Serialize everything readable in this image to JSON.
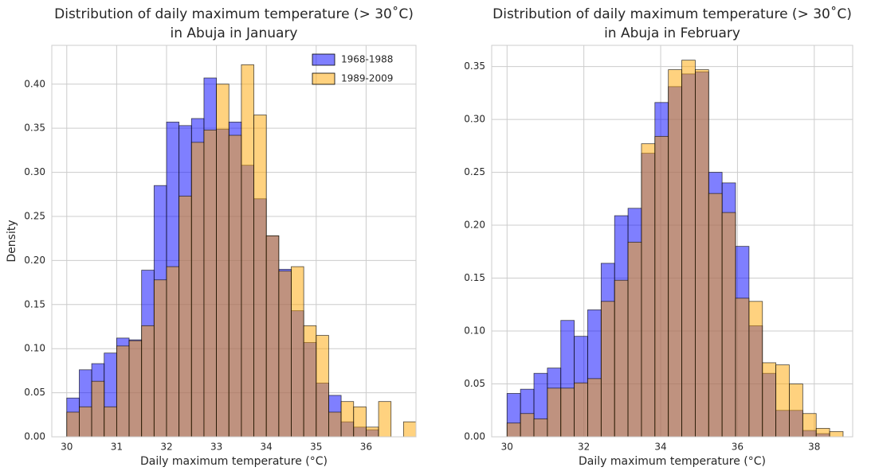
{
  "chart_data": [
    {
      "type": "histogram",
      "title": [
        "Distribution of daily maximum temperature (> 30˚C)",
        "in Abuja in January"
      ],
      "xlabel": "Daily maximum temperature (°C)",
      "ylabel": "Density",
      "bins": [
        30,
        30.25,
        30.5,
        30.75,
        31,
        31.25,
        31.5,
        31.75,
        32,
        32.25,
        32.5,
        32.75,
        33,
        33.25,
        33.5,
        33.75,
        34,
        34.25,
        34.5,
        34.75,
        35,
        35.25,
        35.5,
        35.75,
        36,
        36.25,
        36.5,
        36.75,
        37
      ],
      "series": [
        {
          "name": "1968-1988",
          "color": "#0000ff",
          "values": [
            0.044,
            0.076,
            0.083,
            0.095,
            0.112,
            0.11,
            0.189,
            0.285,
            0.357,
            0.353,
            0.361,
            0.407,
            0.349,
            0.357,
            0.308,
            0.27,
            0.228,
            0.19,
            0.143,
            0.107,
            0.061,
            0.047,
            0.017,
            0.011,
            0.008,
            0,
            0,
            0
          ]
        },
        {
          "name": "1989-2009",
          "color": "#ffa500",
          "values": [
            0.028,
            0.034,
            0.063,
            0.034,
            0.103,
            0.109,
            0.126,
            0.178,
            0.193,
            0.273,
            0.334,
            0.348,
            0.4,
            0.342,
            0.422,
            0.365,
            0.228,
            0.188,
            0.193,
            0.126,
            0.115,
            0.028,
            0.04,
            0.034,
            0.011,
            0.04,
            0,
            0.017
          ]
        }
      ],
      "opacity": 0.5,
      "legend": "upper right",
      "grid": true,
      "xlim": [
        29.7,
        37
      ],
      "xticks": [
        30,
        31,
        32,
        33,
        34,
        35,
        36
      ],
      "ylim": [
        0,
        0.444
      ],
      "yticks": [
        {
          "value": 0,
          "label": "0.00"
        },
        {
          "value": 0.05,
          "label": "0.05"
        },
        {
          "value": 0.1,
          "label": "0.10"
        },
        {
          "value": 0.15,
          "label": "0.15"
        },
        {
          "value": 0.2,
          "label": "0.20"
        },
        {
          "value": 0.25,
          "label": "0.25"
        },
        {
          "value": 0.3,
          "label": "0.30"
        },
        {
          "value": 0.35,
          "label": "0.35"
        },
        {
          "value": 0.4,
          "label": "0.40"
        }
      ]
    },
    {
      "type": "histogram",
      "title": [
        "Distribution of daily maximum temperature (> 30˚C)",
        "in Abuja in February"
      ],
      "xlabel": "Daily maximum temperature (°C)",
      "bins": [
        30,
        30.35,
        30.7,
        31.05,
        31.4,
        31.75,
        32.1,
        32.45,
        32.8,
        33.15,
        33.5,
        33.85,
        34.2,
        34.55,
        34.9,
        35.25,
        35.6,
        35.95,
        36.3,
        36.65,
        37,
        37.35,
        37.7,
        38.05,
        38.4,
        38.75
      ],
      "series": [
        {
          "color": "#0000ff",
          "values": [
            0.041,
            0.045,
            0.06,
            0.065,
            0.11,
            0.095,
            0.12,
            0.164,
            0.209,
            0.216,
            0.268,
            0.316,
            0.331,
            0.343,
            0.345,
            0.25,
            0.24,
            0.18,
            0.105,
            0.06,
            0.025,
            0.025,
            0.006,
            0.003,
            0
          ]
        },
        {
          "color": "#ffa500",
          "values": [
            0.013,
            0.022,
            0.017,
            0.046,
            0.046,
            0.051,
            0.055,
            0.128,
            0.148,
            0.184,
            0.277,
            0.284,
            0.347,
            0.356,
            0.347,
            0.23,
            0.212,
            0.131,
            0.128,
            0.07,
            0.068,
            0.05,
            0.022,
            0.008,
            0.005
          ]
        }
      ],
      "opacity": 0.5,
      "grid": true,
      "xlim": [
        29.6,
        39.0
      ],
      "xticks": [
        30,
        32,
        34,
        36,
        38
      ],
      "ylim": [
        0,
        0.37
      ],
      "yticks": [
        {
          "value": 0,
          "label": "0.00"
        },
        {
          "value": 0.05,
          "label": "0.05"
        },
        {
          "value": 0.1,
          "label": "0.10"
        },
        {
          "value": 0.15,
          "label": "0.15"
        },
        {
          "value": 0.2,
          "label": "0.20"
        },
        {
          "value": 0.25,
          "label": "0.25"
        },
        {
          "value": 0.3,
          "label": "0.30"
        },
        {
          "value": 0.35,
          "label": "0.35"
        }
      ]
    }
  ]
}
